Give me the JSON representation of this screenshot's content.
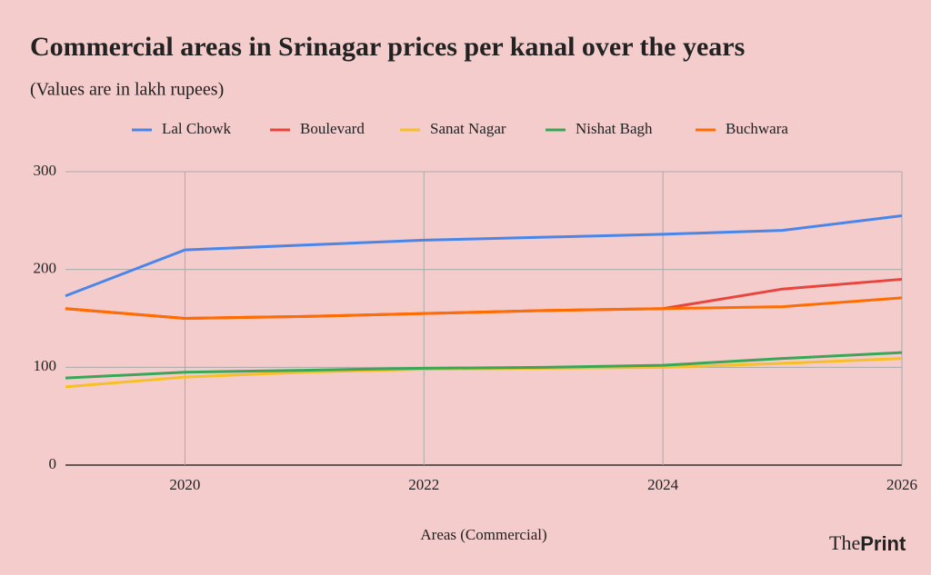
{
  "chart_data": {
    "type": "line",
    "title": "Commercial areas in Srinagar prices per kanal over the years",
    "subtitle": "(Values are in lakh rupees)",
    "x_label": "Areas (Commercial)",
    "x": [
      2019,
      2020,
      2021,
      2022,
      2023,
      2024,
      2025,
      2026
    ],
    "xlim": [
      2019,
      2026
    ],
    "xticks": [
      2020,
      2022,
      2024,
      2026
    ],
    "ylim": [
      0,
      300
    ],
    "yticks": [
      0,
      100,
      200,
      300
    ],
    "grid": true,
    "legend": "top",
    "series": [
      {
        "name": "Lal Chowk",
        "color": "#4a86e8",
        "values": [
          173,
          220,
          225,
          230,
          233,
          236,
          240,
          255
        ]
      },
      {
        "name": "Boulevard",
        "color": "#e8453c",
        "values": [
          160,
          150,
          152,
          155,
          158,
          160,
          180,
          190
        ]
      },
      {
        "name": "Sanat Nagar",
        "color": "#f6c026",
        "values": [
          80,
          90,
          95,
          98,
          99,
          100,
          104,
          109
        ]
      },
      {
        "name": "Nishat Bagh",
        "color": "#3aa757",
        "values": [
          89,
          95,
          97,
          99,
          100,
          102,
          109,
          115
        ]
      },
      {
        "name": "Buchwara",
        "color": "#ff6d01",
        "values": [
          160,
          150,
          152,
          155,
          158,
          160,
          162,
          171
        ]
      }
    ]
  },
  "branding": {
    "the": "The",
    "print": "Print"
  }
}
